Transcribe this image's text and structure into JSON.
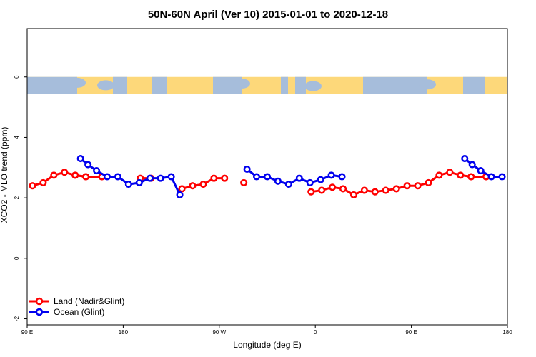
{
  "chart_data": {
    "type": "line",
    "title": "50N-60N April (Ver 10)   2015-01-01 to 2020-12-18",
    "xlabel": "Longitude (deg E)",
    "ylabel": "XCO2 - MLO trend (ppm)",
    "xlim": [
      90,
      540
    ],
    "ylim": [
      -2.2,
      7.6
    ],
    "x_ticks": [
      {
        "value": 90,
        "label": "90 E"
      },
      {
        "value": 180,
        "label": "180"
      },
      {
        "value": 270,
        "label": "90 W"
      },
      {
        "value": 360,
        "label": "0"
      },
      {
        "value": 450,
        "label": "90 E"
      },
      {
        "value": 540,
        "label": "180"
      }
    ],
    "y_ticks": [
      {
        "value": -2,
        "label": "-2"
      },
      {
        "value": 0,
        "label": "0"
      },
      {
        "value": 2,
        "label": "2"
      },
      {
        "value": 4,
        "label": "4"
      },
      {
        "value": 6,
        "label": "6"
      }
    ],
    "map_strip": {
      "ymin": 5.45,
      "ymax": 6.0,
      "ocean_color": "#a6bddb",
      "land_color": "#fdd87a"
    },
    "series": [
      {
        "name": "Land (Nadir&Glint)",
        "color": "#ff0000",
        "segments": [
          [
            [
              95,
              2.4
            ],
            [
              105,
              2.5
            ],
            [
              115,
              2.75
            ],
            [
              125,
              2.85
            ],
            [
              135,
              2.75
            ],
            [
              145,
              2.7
            ],
            [
              160,
              2.7
            ]
          ],
          [
            [
              135,
              2.75
            ],
            [
              145,
              2.7
            ],
            [
              160,
              2.7
            ]
          ],
          [
            [
              196,
              2.65
            ],
            [
              206,
              2.65
            ]
          ],
          [
            [
              235,
              2.3
            ],
            [
              245,
              2.4
            ],
            [
              255,
              2.45
            ],
            [
              265,
              2.65
            ],
            [
              275,
              2.65
            ]
          ],
          [
            [
              293,
              2.5
            ]
          ],
          [
            [
              356,
              2.2
            ],
            [
              366,
              2.25
            ],
            [
              376,
              2.35
            ],
            [
              386,
              2.3
            ],
            [
              396,
              2.1
            ],
            [
              406,
              2.25
            ],
            [
              416,
              2.2
            ],
            [
              426,
              2.25
            ],
            [
              436,
              2.3
            ],
            [
              446,
              2.4
            ],
            [
              456,
              2.4
            ],
            [
              466,
              2.5
            ],
            [
              476,
              2.75
            ],
            [
              486,
              2.85
            ],
            [
              496,
              2.75
            ],
            [
              506,
              2.7
            ],
            [
              520,
              2.7
            ]
          ],
          [
            [
              506,
              2.7
            ],
            [
              520,
              2.7
            ]
          ]
        ]
      },
      {
        "name": "Ocean (Glint)",
        "color": "#0000ee",
        "segments": [
          [
            [
              140,
              3.3
            ],
            [
              147,
              3.1
            ],
            [
              155,
              2.9
            ],
            [
              165,
              2.7
            ],
            [
              175,
              2.7
            ],
            [
              185,
              2.45
            ],
            [
              195,
              2.5
            ],
            [
              205,
              2.65
            ],
            [
              215,
              2.65
            ],
            [
              225,
              2.7
            ],
            [
              233,
              2.1
            ]
          ],
          [
            [
              296,
              2.95
            ],
            [
              305,
              2.7
            ],
            [
              315,
              2.7
            ],
            [
              325,
              2.55
            ],
            [
              335,
              2.45
            ],
            [
              345,
              2.65
            ],
            [
              355,
              2.5
            ],
            [
              365,
              2.6
            ],
            [
              375,
              2.75
            ],
            [
              385,
              2.7
            ]
          ],
          [
            [
              500,
              3.3
            ],
            [
              507,
              3.1
            ],
            [
              515,
              2.9
            ],
            [
              525,
              2.7
            ],
            [
              535,
              2.7
            ]
          ]
        ]
      }
    ],
    "legend_position": "bottom-left"
  }
}
